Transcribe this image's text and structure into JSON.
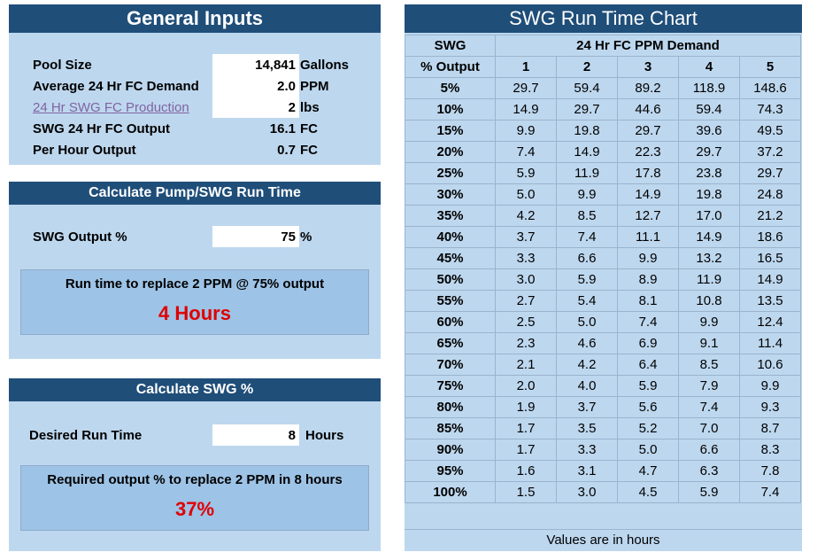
{
  "general": {
    "title": "General Inputs",
    "rows": [
      {
        "label": "Pool Size",
        "value": "14,841",
        "unit": "Gallons"
      },
      {
        "label": "Average 24 Hr FC Demand",
        "value": "2.0",
        "unit": "PPM"
      },
      {
        "label": "24 Hr SWG FC Production",
        "value": "2",
        "unit": "lbs"
      },
      {
        "label": "SWG 24 Hr FC Output",
        "value": "16.1",
        "unit": "FC"
      },
      {
        "label": "Per Hour Output",
        "value": "0.7",
        "unit": "FC"
      }
    ]
  },
  "pump": {
    "title": "Calculate Pump/SWG Run Time",
    "label": "SWG Output %",
    "value": "75",
    "unit": "%",
    "result_text": "Run time to replace 2 PPM @ 75% output",
    "result_value": "4 Hours"
  },
  "swgpct": {
    "title": "Calculate SWG %",
    "label": "Desired Run Time",
    "value": "8",
    "unit": "Hours",
    "result_text": "Required output % to replace 2 PPM in 8 hours",
    "result_value": "37%"
  },
  "chart": {
    "title": "SWG Run Time Chart",
    "col1_top": "SWG",
    "col1_bottom": "% Output",
    "demand_header": "24 Hr FC PPM Demand",
    "demand_cols": [
      "1",
      "2",
      "3",
      "4",
      "5"
    ],
    "rows": [
      {
        "pct": "5%",
        "vals": [
          "29.7",
          "59.4",
          "89.2",
          "118.9",
          "148.6"
        ]
      },
      {
        "pct": "10%",
        "vals": [
          "14.9",
          "29.7",
          "44.6",
          "59.4",
          "74.3"
        ]
      },
      {
        "pct": "15%",
        "vals": [
          "9.9",
          "19.8",
          "29.7",
          "39.6",
          "49.5"
        ]
      },
      {
        "pct": "20%",
        "vals": [
          "7.4",
          "14.9",
          "22.3",
          "29.7",
          "37.2"
        ]
      },
      {
        "pct": "25%",
        "vals": [
          "5.9",
          "11.9",
          "17.8",
          "23.8",
          "29.7"
        ]
      },
      {
        "pct": "30%",
        "vals": [
          "5.0",
          "9.9",
          "14.9",
          "19.8",
          "24.8"
        ]
      },
      {
        "pct": "35%",
        "vals": [
          "4.2",
          "8.5",
          "12.7",
          "17.0",
          "21.2"
        ]
      },
      {
        "pct": "40%",
        "vals": [
          "3.7",
          "7.4",
          "11.1",
          "14.9",
          "18.6"
        ]
      },
      {
        "pct": "45%",
        "vals": [
          "3.3",
          "6.6",
          "9.9",
          "13.2",
          "16.5"
        ]
      },
      {
        "pct": "50%",
        "vals": [
          "3.0",
          "5.9",
          "8.9",
          "11.9",
          "14.9"
        ]
      },
      {
        "pct": "55%",
        "vals": [
          "2.7",
          "5.4",
          "8.1",
          "10.8",
          "13.5"
        ]
      },
      {
        "pct": "60%",
        "vals": [
          "2.5",
          "5.0",
          "7.4",
          "9.9",
          "12.4"
        ]
      },
      {
        "pct": "65%",
        "vals": [
          "2.3",
          "4.6",
          "6.9",
          "9.1",
          "11.4"
        ]
      },
      {
        "pct": "70%",
        "vals": [
          "2.1",
          "4.2",
          "6.4",
          "8.5",
          "10.6"
        ]
      },
      {
        "pct": "75%",
        "vals": [
          "2.0",
          "4.0",
          "5.9",
          "7.9",
          "9.9"
        ]
      },
      {
        "pct": "80%",
        "vals": [
          "1.9",
          "3.7",
          "5.6",
          "7.4",
          "9.3"
        ]
      },
      {
        "pct": "85%",
        "vals": [
          "1.7",
          "3.5",
          "5.2",
          "7.0",
          "8.7"
        ]
      },
      {
        "pct": "90%",
        "vals": [
          "1.7",
          "3.3",
          "5.0",
          "6.6",
          "8.3"
        ]
      },
      {
        "pct": "95%",
        "vals": [
          "1.6",
          "3.1",
          "4.7",
          "6.3",
          "7.8"
        ]
      },
      {
        "pct": "100%",
        "vals": [
          "1.5",
          "3.0",
          "4.5",
          "5.9",
          "7.4"
        ]
      }
    ],
    "footer": "Values are in hours"
  }
}
